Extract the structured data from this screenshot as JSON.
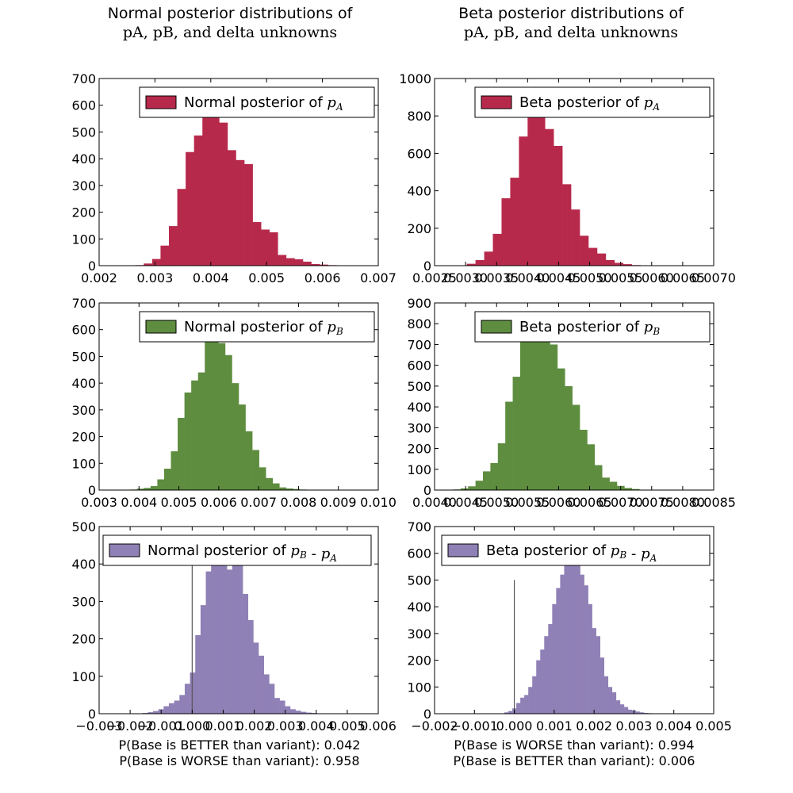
{
  "columns": [
    {
      "title_line1": "Normal posterior distributions of",
      "title_line2": "pA, pB, and delta unknowns"
    },
    {
      "title_line1": "Beta posterior distributions of",
      "title_line2": "pA, pB, and delta unknowns"
    }
  ],
  "notes": {
    "left": [
      "P(Base is BETTER than variant): 0.042",
      "P(Base is WORSE than variant): 0.958"
    ],
    "right": [
      "P(Base is WORSE than variant): 0.994",
      "P(Base is BETTER than variant): 0.006"
    ]
  },
  "colors": {
    "pA": "#b7294b",
    "pB": "#5e8d3f",
    "delta": "#8f80b6"
  },
  "chart_data": [
    {
      "id": "normal-pA",
      "type": "bar",
      "color_key": "pA",
      "legend": "Normal posterior of pA",
      "legend_prefix": "Normal posterior of ",
      "legend_sym": [
        "p",
        "A"
      ],
      "legend_loc": "upper right",
      "xlim": [
        0.002,
        0.007
      ],
      "ylim": [
        0,
        700
      ],
      "xticks": [
        0.002,
        0.003,
        0.004,
        0.005,
        0.006,
        0.007
      ],
      "xtick_labels": [
        "0.002",
        "0.003",
        "0.004",
        "0.005",
        "0.006",
        "0.007"
      ],
      "yticks": [
        0,
        100,
        200,
        300,
        400,
        500,
        600,
        700
      ],
      "bin_edges": [
        0.00265,
        0.0028,
        0.00295,
        0.0031,
        0.00325,
        0.0034,
        0.00355,
        0.0037,
        0.00385,
        0.004,
        0.00415,
        0.0043,
        0.00445,
        0.0046,
        0.00475,
        0.0049,
        0.00505,
        0.0052,
        0.00535,
        0.0055,
        0.00565,
        0.0058,
        0.00595,
        0.0061,
        0.00625,
        0.0064,
        0.00655,
        0.0067,
        0.00685
      ],
      "counts": [
        2,
        8,
        25,
        75,
        148,
        287,
        425,
        487,
        555,
        555,
        535,
        432,
        395,
        380,
        163,
        135,
        125,
        40,
        28,
        24,
        15,
        6,
        4,
        2,
        0,
        0,
        0,
        0
      ]
    },
    {
      "id": "beta-pA",
      "type": "bar",
      "color_key": "pA",
      "legend": "Beta posterior of pA",
      "legend_prefix": "Beta posterior of ",
      "legend_sym": [
        "p",
        "A"
      ],
      "legend_loc": "upper right",
      "xlim": [
        0.0025,
        0.007
      ],
      "ylim": [
        0,
        1000
      ],
      "xticks": [
        0.0025,
        0.003,
        0.0035,
        0.004,
        0.0045,
        0.005,
        0.0055,
        0.006,
        0.0065,
        0.007
      ],
      "xtick_labels": [
        "0.0025",
        "0.0030",
        "0.0035",
        "0.0040",
        "0.0045",
        "0.0050",
        "0.0055",
        "0.0060",
        "0.0065",
        "0.0070"
      ],
      "yticks": [
        0,
        200,
        400,
        600,
        800,
        1000
      ],
      "bin_edges": [
        0.00288,
        0.00302,
        0.00316,
        0.0033,
        0.00344,
        0.00358,
        0.00372,
        0.00386,
        0.004,
        0.00414,
        0.00428,
        0.00442,
        0.00456,
        0.0047,
        0.00484,
        0.00498,
        0.00512,
        0.00526,
        0.0054,
        0.00554,
        0.00568,
        0.00582,
        0.00596
      ],
      "counts": [
        2,
        10,
        30,
        75,
        170,
        360,
        470,
        690,
        800,
        800,
        730,
        640,
        435,
        300,
        160,
        95,
        65,
        30,
        15,
        8,
        3,
        1
      ]
    },
    {
      "id": "normal-pB",
      "type": "bar",
      "color_key": "pB",
      "legend": "Normal posterior of pB",
      "legend_prefix": "Normal posterior of ",
      "legend_sym": [
        "p",
        "B"
      ],
      "legend_loc": "upper right",
      "xlim": [
        0.003,
        0.01
      ],
      "ylim": [
        0,
        700
      ],
      "xticks": [
        0.003,
        0.004,
        0.005,
        0.006,
        0.007,
        0.008,
        0.009,
        0.01
      ],
      "xtick_labels": [
        "0.003",
        "0.004",
        "0.005",
        "0.006",
        "0.007",
        "0.008",
        "0.009",
        "0.010"
      ],
      "yticks": [
        0,
        100,
        200,
        300,
        400,
        500,
        600,
        700
      ],
      "bin_edges": [
        0.00378,
        0.00395,
        0.00412,
        0.00429,
        0.00446,
        0.00463,
        0.0048,
        0.00497,
        0.00514,
        0.00531,
        0.00548,
        0.00565,
        0.00582,
        0.00599,
        0.00616,
        0.00633,
        0.0065,
        0.00667,
        0.00684,
        0.00701,
        0.00718,
        0.00735,
        0.00752,
        0.00769,
        0.00786,
        0.00803,
        0.0082,
        0.00837,
        0.00854,
        0.00871
      ],
      "counts": [
        2,
        5,
        8,
        15,
        40,
        80,
        145,
        270,
        365,
        410,
        440,
        555,
        605,
        550,
        505,
        400,
        320,
        220,
        150,
        85,
        45,
        25,
        10,
        6,
        4,
        2,
        1,
        0,
        0
      ]
    },
    {
      "id": "beta-pB",
      "type": "bar",
      "color_key": "pB",
      "legend": "Beta posterior of pB",
      "legend_prefix": "Beta posterior of ",
      "legend_sym": [
        "p",
        "B"
      ],
      "legend_loc": "upper right",
      "xlim": [
        0.004,
        0.0085
      ],
      "ylim": [
        0,
        900
      ],
      "xticks": [
        0.004,
        0.0045,
        0.005,
        0.0055,
        0.006,
        0.0065,
        0.007,
        0.0075,
        0.008,
        0.0085
      ],
      "xtick_labels": [
        "0.0040",
        "0.0045",
        "0.0050",
        "0.0055",
        "0.0060",
        "0.0065",
        "0.0070",
        "0.0075",
        "0.0080",
        "0.0085"
      ],
      "yticks": [
        0,
        100,
        200,
        300,
        400,
        500,
        600,
        700,
        800,
        900
      ],
      "bin_edges": [
        0.0043,
        0.00442,
        0.00454,
        0.00466,
        0.00478,
        0.0049,
        0.00502,
        0.00514,
        0.00526,
        0.00538,
        0.0055,
        0.00562,
        0.00574,
        0.00586,
        0.00598,
        0.0061,
        0.00622,
        0.00634,
        0.00646,
        0.00658,
        0.0067,
        0.00682,
        0.00694,
        0.00706,
        0.00718,
        0.0073,
        0.00742,
        0.00754
      ],
      "counts": [
        3,
        8,
        18,
        45,
        90,
        130,
        225,
        425,
        545,
        715,
        760,
        780,
        770,
        700,
        585,
        500,
        410,
        290,
        220,
        120,
        60,
        40,
        20,
        10,
        5,
        2,
        1
      ]
    },
    {
      "id": "normal-delta",
      "type": "bar",
      "color_key": "delta",
      "legend": "Normal posterior of pB - pA",
      "legend_prefix": "Normal posterior of ",
      "legend_sym": [
        "p",
        "B",
        " - ",
        "p",
        "A"
      ],
      "legend_loc": "upper left",
      "xlim": [
        -0.003,
        0.006
      ],
      "ylim": [
        0,
        500
      ],
      "xticks": [
        -0.003,
        -0.002,
        -0.001,
        0.0,
        0.001,
        0.002,
        0.003,
        0.004,
        0.005,
        0.006
      ],
      "xtick_labels": [
        "−0.003",
        "−0.002",
        "−0.001",
        "0.000",
        "0.001",
        "0.002",
        "0.003",
        "0.004",
        "0.005",
        "0.006"
      ],
      "yticks": [
        0,
        100,
        200,
        300,
        400,
        500
      ],
      "bin_edges": [
        -0.0016,
        -0.00143,
        -0.00126,
        -0.00109,
        -0.00092,
        -0.00075,
        -0.00058,
        -0.00041,
        -0.00024,
        -7e-05,
        0.0001,
        0.00027,
        0.00044,
        0.00061,
        0.00078,
        0.00095,
        0.00112,
        0.00129,
        0.00146,
        0.00163,
        0.0018,
        0.00197,
        0.00214,
        0.00231,
        0.00248,
        0.00265,
        0.00282,
        0.00299,
        0.00316,
        0.00333,
        0.0035,
        0.00367,
        0.00384,
        0.00401,
        0.00418,
        0.00435,
        0.00452
      ],
      "counts": [
        2,
        4,
        7,
        12,
        20,
        28,
        35,
        50,
        80,
        110,
        210,
        290,
        380,
        400,
        430,
        395,
        385,
        430,
        430,
        320,
        250,
        190,
        155,
        105,
        80,
        42,
        35,
        20,
        12,
        8,
        5,
        3,
        2,
        1,
        0,
        0
      ]
    },
    {
      "id": "beta-delta",
      "type": "bar",
      "color_key": "delta",
      "legend": "Beta posterior of pB - pA",
      "legend_prefix": "Beta posterior of ",
      "legend_sym": [
        "p",
        "B",
        " - ",
        "p",
        "A"
      ],
      "legend_loc": "upper right",
      "xlim": [
        -0.002,
        0.005
      ],
      "ylim": [
        0,
        700
      ],
      "xticks": [
        -0.002,
        -0.001,
        0.0,
        0.001,
        0.002,
        0.003,
        0.004,
        0.005
      ],
      "xtick_labels": [
        "−0.002",
        "−0.001",
        "0.000",
        "0.001",
        "0.002",
        "0.003",
        "0.004",
        "0.005"
      ],
      "yticks": [
        0,
        100,
        200,
        300,
        400,
        500,
        600,
        700
      ],
      "bin_edges": [
        -0.00025,
        -0.00015,
        -5e-05,
        5e-05,
        0.00015,
        0.00025,
        0.00035,
        0.00045,
        0.00055,
        0.00065,
        0.00075,
        0.00085,
        0.00095,
        0.00105,
        0.00115,
        0.00125,
        0.00135,
        0.00145,
        0.00155,
        0.00165,
        0.00175,
        0.00185,
        0.00195,
        0.00205,
        0.00215,
        0.00225,
        0.00235,
        0.00245,
        0.00255,
        0.00265,
        0.00275,
        0.00285,
        0.00295,
        0.00305,
        0.00315,
        0.00325,
        0.00335,
        0.00345,
        0.00355,
        0.00365
      ],
      "counts": [
        5,
        10,
        20,
        40,
        60,
        70,
        100,
        140,
        200,
        240,
        290,
        335,
        410,
        470,
        520,
        565,
        580,
        600,
        560,
        520,
        480,
        410,
        320,
        290,
        210,
        140,
        100,
        80,
        50,
        35,
        25,
        15,
        12,
        8,
        5,
        3,
        2,
        1,
        0
      ]
    }
  ]
}
